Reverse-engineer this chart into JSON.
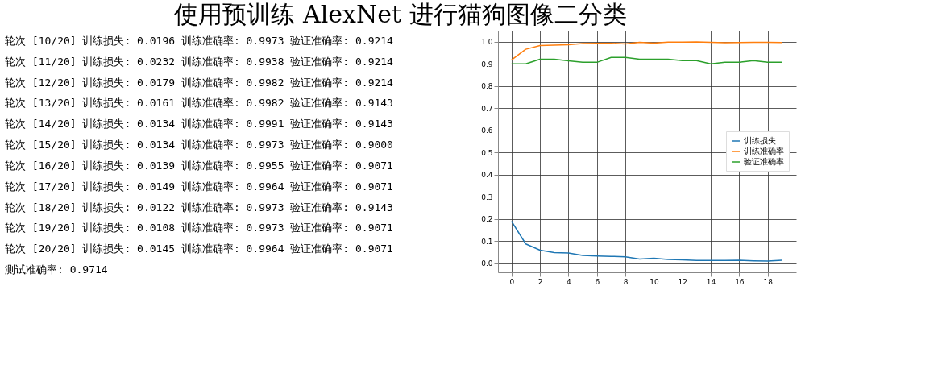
{
  "chart_data": {
    "type": "line",
    "title": "使用预训练 AlexNet 进行猫狗图像二分类",
    "annotations": [
      "轮次 [10/20]  训练损失: 0.0196  训练准确率: 0.9973  验证准确率: 0.9214",
      "轮次 [11/20]  训练损失: 0.0232  训练准确率: 0.9938  验证准确率: 0.9214",
      "轮次 [12/20]  训练损失: 0.0179  训练准确率: 0.9982  验证准确率: 0.9214",
      "轮次 [13/20]  训练损失: 0.0161  训练准确率: 0.9982  验证准确率: 0.9143",
      "轮次 [14/20]  训练损失: 0.0134  训练准确率: 0.9991  验证准确率: 0.9143",
      "轮次 [15/20]  训练损失: 0.0134  训练准确率: 0.9973  验证准确率: 0.9000",
      "轮次 [16/20]  训练损失: 0.0139  训练准确率: 0.9955  验证准确率: 0.9071",
      "轮次 [17/20]  训练损失: 0.0149  训练准确率: 0.9964  验证准确率: 0.9071",
      "轮次 [18/20]  训练损失: 0.0122  训练准确率: 0.9973  验证准确率: 0.9143",
      "轮次 [19/20]  训练损失: 0.0108  训练准确率: 0.9973  验证准确率: 0.9071",
      "轮次 [20/20]  训练损失: 0.0145  训练准确率: 0.9964  验证准确率: 0.9071",
      "测试准确率: 0.9714"
    ],
    "x": [
      0,
      1,
      2,
      3,
      4,
      5,
      6,
      7,
      8,
      9,
      10,
      11,
      12,
      13,
      14,
      15,
      16,
      17,
      18,
      19
    ],
    "series": [
      {
        "name": "训练损失",
        "color": "#1f77b4",
        "values": [
          0.19,
          0.088,
          0.06,
          0.049,
          0.047,
          0.036,
          0.034,
          0.032,
          0.03,
          0.0196,
          0.0232,
          0.0179,
          0.0161,
          0.0134,
          0.0134,
          0.0139,
          0.0149,
          0.0122,
          0.0108,
          0.0145
        ]
      },
      {
        "name": "训练准确率",
        "color": "#ff7f0e",
        "values": [
          0.918,
          0.966,
          0.983,
          0.985,
          0.986,
          0.992,
          0.993,
          0.993,
          0.99,
          0.9973,
          0.9938,
          0.9982,
          0.9982,
          0.9991,
          0.9973,
          0.9955,
          0.9964,
          0.9973,
          0.9973,
          0.9964
        ]
      },
      {
        "name": "验证准确率",
        "color": "#2ca02c",
        "values": [
          0.9,
          0.9,
          0.921,
          0.921,
          0.914,
          0.907,
          0.907,
          0.929,
          0.929,
          0.9214,
          0.9214,
          0.9214,
          0.9143,
          0.9143,
          0.9,
          0.9071,
          0.9071,
          0.9143,
          0.9071,
          0.9071
        ]
      }
    ],
    "xlim": [
      -0.95,
      20
    ],
    "xticks": [
      0,
      2,
      4,
      6,
      8,
      10,
      12,
      14,
      16,
      18
    ],
    "ylim": [
      -0.04,
      1.05
    ],
    "yticks": [
      {
        "value": 0,
        "label": "0.0"
      },
      {
        "value": 0.1,
        "label": "0.1"
      },
      {
        "value": 0.2,
        "label": "0.2"
      },
      {
        "value": 0.3,
        "label": "0.3"
      },
      {
        "value": 0.4,
        "label": "0.4"
      },
      {
        "value": 0.5,
        "label": "0.5"
      },
      {
        "value": 0.6,
        "label": "0.6"
      },
      {
        "value": 0.7,
        "label": "0.7"
      },
      {
        "value": 0.8,
        "label": "0.8"
      },
      {
        "value": 0.9,
        "label": "0.9"
      },
      {
        "value": 1.0,
        "label": "1.0"
      }
    ],
    "grid": true,
    "legend": "right"
  }
}
